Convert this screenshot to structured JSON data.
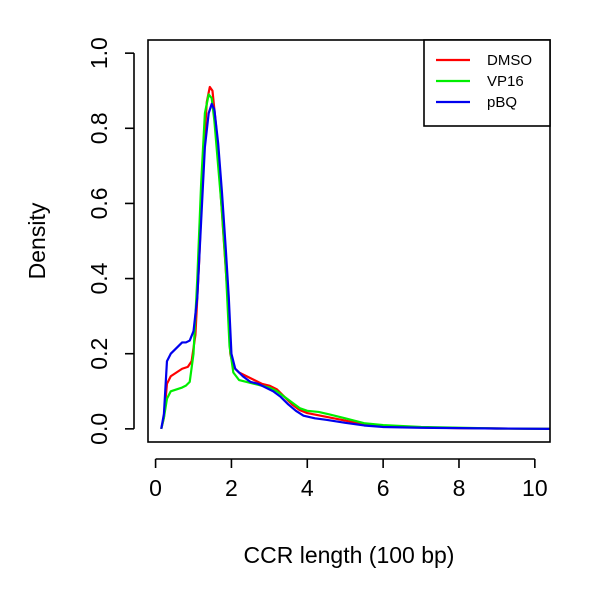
{
  "chart_data": {
    "type": "line",
    "title": "",
    "xlabel": "CCR length (100 bp)",
    "ylabel": "Density",
    "xlim": [
      -0.2,
      10.4
    ],
    "ylim": [
      -0.035,
      1.035
    ],
    "x_ticks": [
      0,
      2,
      4,
      6,
      8,
      10
    ],
    "y_ticks": [
      0.0,
      0.2,
      0.4,
      0.6,
      0.8,
      1.0
    ],
    "x_tick_labels": [
      "0",
      "2",
      "4",
      "6",
      "8",
      "10"
    ],
    "y_tick_labels": [
      "0.0",
      "0.2",
      "0.4",
      "0.6",
      "0.8",
      "1.0"
    ],
    "grid": false,
    "legend_position": "top-right",
    "series": [
      {
        "name": "DMSO",
        "color": "#ff0000",
        "points": [
          [
            0.15,
            0.0
          ],
          [
            0.22,
            0.03
          ],
          [
            0.3,
            0.12
          ],
          [
            0.4,
            0.14
          ],
          [
            0.55,
            0.15
          ],
          [
            0.7,
            0.16
          ],
          [
            0.85,
            0.165
          ],
          [
            0.95,
            0.18
          ],
          [
            1.05,
            0.25
          ],
          [
            1.15,
            0.45
          ],
          [
            1.25,
            0.7
          ],
          [
            1.35,
            0.87
          ],
          [
            1.43,
            0.91
          ],
          [
            1.5,
            0.9
          ],
          [
            1.6,
            0.8
          ],
          [
            1.7,
            0.65
          ],
          [
            1.8,
            0.5
          ],
          [
            1.9,
            0.35
          ],
          [
            1.97,
            0.2
          ],
          [
            2.05,
            0.165
          ],
          [
            2.2,
            0.15
          ],
          [
            2.4,
            0.14
          ],
          [
            2.6,
            0.13
          ],
          [
            2.8,
            0.12
          ],
          [
            3.0,
            0.115
          ],
          [
            3.2,
            0.105
          ],
          [
            3.4,
            0.085
          ],
          [
            3.6,
            0.065
          ],
          [
            3.8,
            0.05
          ],
          [
            4.0,
            0.042
          ],
          [
            4.3,
            0.036
          ],
          [
            4.6,
            0.03
          ],
          [
            5.0,
            0.022
          ],
          [
            5.5,
            0.012
          ],
          [
            6.0,
            0.008
          ],
          [
            7.0,
            0.004
          ],
          [
            8.0,
            0.002
          ],
          [
            9.0,
            0.001
          ],
          [
            10.4,
            0.0
          ]
        ]
      },
      {
        "name": "VP16",
        "color": "#00ee00",
        "points": [
          [
            0.15,
            0.0
          ],
          [
            0.22,
            0.03
          ],
          [
            0.3,
            0.08
          ],
          [
            0.4,
            0.1
          ],
          [
            0.55,
            0.105
          ],
          [
            0.7,
            0.11
          ],
          [
            0.8,
            0.115
          ],
          [
            0.9,
            0.125
          ],
          [
            1.0,
            0.2
          ],
          [
            1.1,
            0.4
          ],
          [
            1.2,
            0.65
          ],
          [
            1.3,
            0.84
          ],
          [
            1.4,
            0.89
          ],
          [
            1.48,
            0.88
          ],
          [
            1.55,
            0.82
          ],
          [
            1.65,
            0.7
          ],
          [
            1.75,
            0.58
          ],
          [
            1.85,
            0.43
          ],
          [
            1.95,
            0.22
          ],
          [
            2.05,
            0.15
          ],
          [
            2.2,
            0.13
          ],
          [
            2.4,
            0.125
          ],
          [
            2.6,
            0.12
          ],
          [
            2.8,
            0.115
          ],
          [
            3.0,
            0.11
          ],
          [
            3.2,
            0.1
          ],
          [
            3.4,
            0.085
          ],
          [
            3.6,
            0.07
          ],
          [
            3.8,
            0.055
          ],
          [
            4.0,
            0.048
          ],
          [
            4.3,
            0.045
          ],
          [
            4.6,
            0.038
          ],
          [
            5.0,
            0.028
          ],
          [
            5.5,
            0.015
          ],
          [
            6.0,
            0.01
          ],
          [
            7.0,
            0.005
          ],
          [
            8.0,
            0.003
          ],
          [
            9.0,
            0.001
          ],
          [
            10.4,
            0.0
          ]
        ]
      },
      {
        "name": "pBQ",
        "color": "#0000ee",
        "points": [
          [
            0.15,
            0.0
          ],
          [
            0.22,
            0.04
          ],
          [
            0.3,
            0.18
          ],
          [
            0.4,
            0.2
          ],
          [
            0.5,
            0.21
          ],
          [
            0.6,
            0.22
          ],
          [
            0.7,
            0.23
          ],
          [
            0.8,
            0.23
          ],
          [
            0.9,
            0.235
          ],
          [
            1.0,
            0.26
          ],
          [
            1.1,
            0.35
          ],
          [
            1.2,
            0.55
          ],
          [
            1.3,
            0.75
          ],
          [
            1.4,
            0.84
          ],
          [
            1.48,
            0.865
          ],
          [
            1.55,
            0.85
          ],
          [
            1.65,
            0.76
          ],
          [
            1.75,
            0.63
          ],
          [
            1.85,
            0.48
          ],
          [
            1.93,
            0.35
          ],
          [
            2.0,
            0.2
          ],
          [
            2.1,
            0.16
          ],
          [
            2.3,
            0.14
          ],
          [
            2.5,
            0.125
          ],
          [
            2.7,
            0.12
          ],
          [
            2.9,
            0.11
          ],
          [
            3.1,
            0.1
          ],
          [
            3.3,
            0.085
          ],
          [
            3.5,
            0.065
          ],
          [
            3.7,
            0.048
          ],
          [
            3.9,
            0.035
          ],
          [
            4.2,
            0.028
          ],
          [
            4.5,
            0.024
          ],
          [
            5.0,
            0.016
          ],
          [
            5.5,
            0.009
          ],
          [
            6.0,
            0.005
          ],
          [
            7.0,
            0.003
          ],
          [
            8.0,
            0.002
          ],
          [
            9.0,
            0.001
          ],
          [
            10.4,
            0.0
          ]
        ]
      }
    ]
  }
}
